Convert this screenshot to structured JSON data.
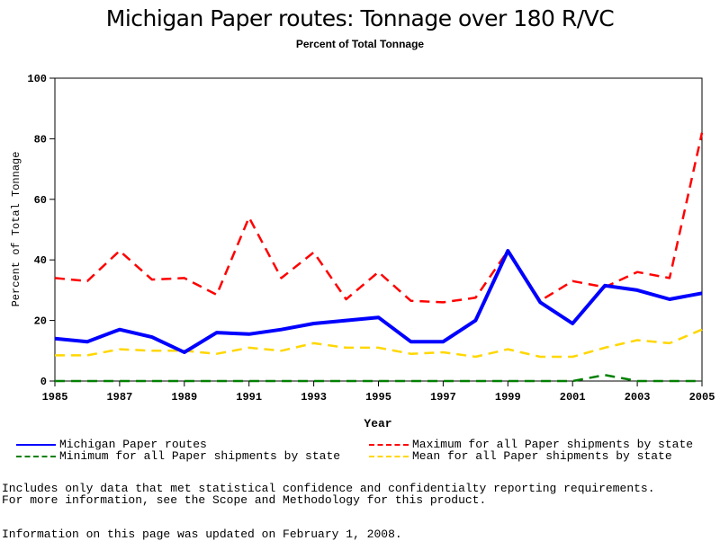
{
  "chart_data": {
    "type": "line",
    "title": "Michigan Paper routes: Tonnage over 180 R/VC",
    "subtitle": "Percent of Total Tonnage",
    "xlabel": "Year",
    "ylabel": "Percent of Total Tonnage",
    "xlim": [
      1985,
      2005
    ],
    "ylim": [
      0,
      100
    ],
    "x_ticks": [
      1985,
      1987,
      1989,
      1991,
      1993,
      1995,
      1997,
      1999,
      2001,
      2003,
      2005
    ],
    "y_ticks": [
      0,
      20,
      40,
      60,
      80,
      100
    ],
    "x": [
      1985,
      1986,
      1987,
      1988,
      1989,
      1990,
      1991,
      1992,
      1993,
      1994,
      1995,
      1996,
      1997,
      1998,
      1999,
      2000,
      2001,
      2002,
      2003,
      2004,
      2005
    ],
    "series": [
      {
        "name": "Michigan Paper routes",
        "color": "#0000ff",
        "style": "solid",
        "values": [
          14,
          13,
          17,
          14.5,
          9.5,
          16,
          15.5,
          17,
          19,
          20,
          21,
          13,
          13,
          20,
          43,
          26,
          19,
          31.5,
          30,
          27,
          29
        ]
      },
      {
        "name": "Maximum for all Paper shipments by state",
        "color": "#ff0000",
        "style": "dashed",
        "values": [
          34,
          33,
          43,
          33.5,
          34,
          28.5,
          54,
          34,
          42.5,
          27,
          36,
          26.5,
          26,
          27.5,
          43,
          26.5,
          33,
          31,
          36,
          34,
          82
        ]
      },
      {
        "name": "Minimum for all Paper shipments by state",
        "color": "#008000",
        "style": "dashed",
        "values": [
          0,
          0,
          0,
          0,
          0,
          0,
          0,
          0,
          0,
          0,
          0,
          0,
          0,
          0,
          0,
          0,
          0,
          2,
          0,
          0,
          0
        ]
      },
      {
        "name": "Mean for all Paper shipments by state",
        "color": "#ffd700",
        "style": "dashed",
        "values": [
          8.5,
          8.5,
          10.5,
          10,
          10,
          9,
          11,
          10,
          12.5,
          11,
          11,
          9,
          9.5,
          8,
          10.5,
          8,
          8,
          11,
          13.5,
          12.5,
          17
        ]
      }
    ]
  },
  "legend": {
    "items": [
      {
        "label": "Michigan Paper routes",
        "color": "#0000ff",
        "style": "solid"
      },
      {
        "label": "Maximum for all Paper shipments by state",
        "color": "#ff0000",
        "style": "dashed"
      },
      {
        "label": "Minimum for all Paper shipments by state",
        "color": "#008000",
        "style": "dashed"
      },
      {
        "label": "Mean for all Paper shipments by state",
        "color": "#ffd700",
        "style": "dashed"
      }
    ]
  },
  "notes": {
    "line1": "Includes only data that met statistical confidence and confidentialty reporting requirements.",
    "line2": "For more information, see the Scope and Methodology for this product.",
    "line3": "Information on this page was updated on February 1, 2008."
  }
}
